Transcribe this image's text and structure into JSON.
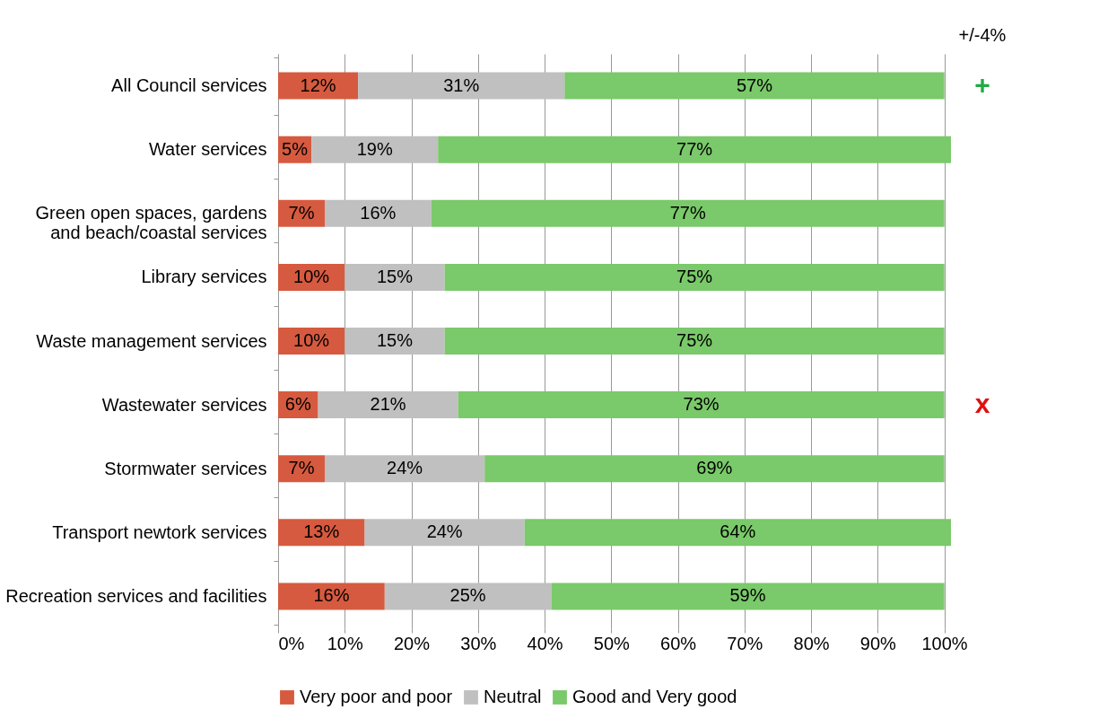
{
  "chart_data": {
    "type": "bar",
    "orientation": "horizontal",
    "stacked": true,
    "categories": [
      "All Council services",
      "Water services",
      "Green open spaces, gardens\nand beach/coastal services",
      "Library services",
      "Waste management services",
      "Wastewater services",
      "Stormwater services",
      "Transport newtork services",
      "Recreation services and facilities"
    ],
    "series": [
      {
        "name": "Very poor and poor",
        "color": "#d65a3f",
        "values": [
          12,
          5,
          7,
          10,
          10,
          6,
          7,
          13,
          16
        ],
        "value_labels": [
          "12%",
          "5%",
          "7%",
          "10%",
          "10%",
          "6%",
          "7%",
          "13%",
          "16%"
        ]
      },
      {
        "name": "Neutral",
        "color": "#c0c0c0",
        "values": [
          31,
          19,
          16,
          15,
          15,
          21,
          24,
          24,
          25
        ],
        "value_labels": [
          "31%",
          "19%",
          "16%",
          "15%",
          "15%",
          "21%",
          "24%",
          "24%",
          "25%"
        ]
      },
      {
        "name": "Good and Very good",
        "color": "#7ac96a",
        "values": [
          57,
          77,
          77,
          75,
          75,
          73,
          69,
          64,
          59
        ],
        "value_labels": [
          "57%",
          "77%",
          "77%",
          "75%",
          "75%",
          "73%",
          "69%",
          "64%",
          "59%"
        ]
      }
    ],
    "xlim": [
      0,
      101
    ],
    "xticks": [
      {
        "value": 0,
        "label": "0%"
      },
      {
        "value": 10,
        "label": "10%"
      },
      {
        "value": 20,
        "label": "20%"
      },
      {
        "value": 30,
        "label": "30%"
      },
      {
        "value": 40,
        "label": "40%"
      },
      {
        "value": 50,
        "label": "50%"
      },
      {
        "value": 60,
        "label": "60%"
      },
      {
        "value": 70,
        "label": "70%"
      },
      {
        "value": 80,
        "label": "80%"
      },
      {
        "value": 90,
        "label": "90%"
      },
      {
        "value": 100,
        "label": "100%"
      }
    ],
    "grid": "x",
    "legend": "bottom",
    "annotations": [
      "+/-4%",
      "+",
      "x"
    ]
  }
}
